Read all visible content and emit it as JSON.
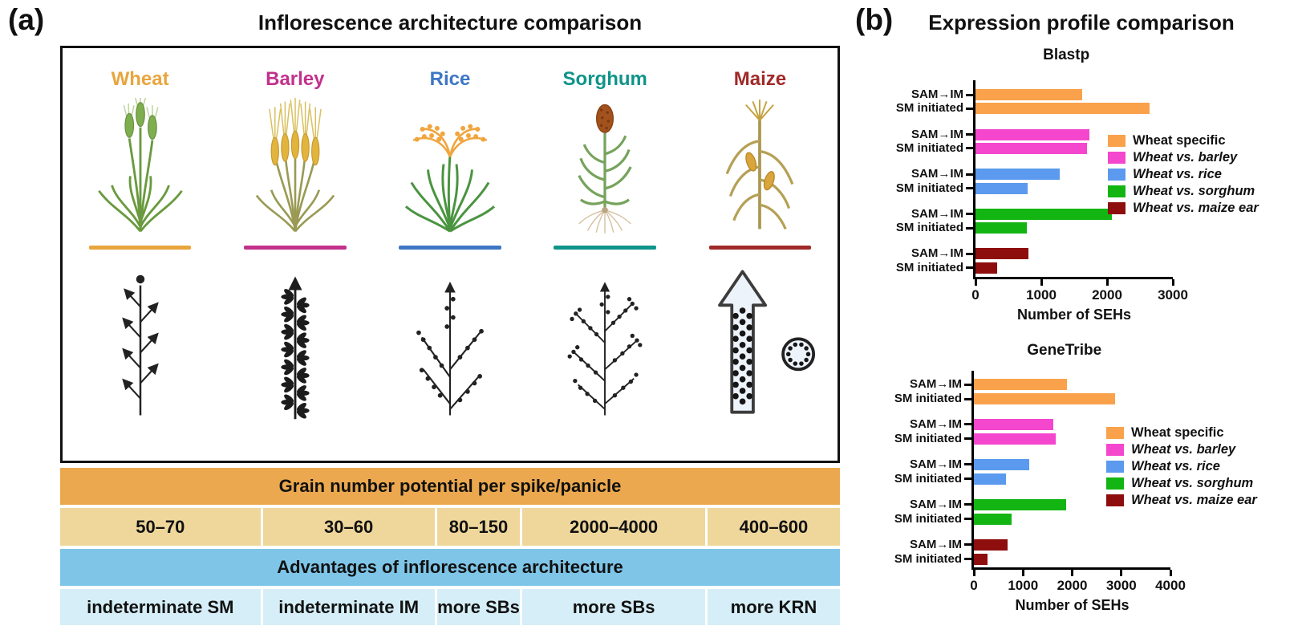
{
  "panel_a": {
    "label": "(a)",
    "title": "Inflorescence architecture comparison",
    "crops": [
      {
        "name": "Wheat",
        "color": "#E8A53C"
      },
      {
        "name": "Barley",
        "color": "#C2318C"
      },
      {
        "name": "Rice",
        "color": "#3D76C4"
      },
      {
        "name": "Sorghum",
        "color": "#0F948A"
      },
      {
        "name": "Maize",
        "color": "#A02A28"
      }
    ],
    "table": {
      "grain_header": "Grain number potential per spike/panicle",
      "grain_values": [
        "50–70",
        "30–60",
        "80–150",
        "2000–4000",
        "400–600"
      ],
      "advantages_header": "Advantages of inflorescence architecture",
      "advantages_values": [
        "indeterminate SM",
        "indeterminate IM",
        "more SBs",
        "more SBs",
        "more KRN"
      ],
      "colors": {
        "grain_header_bg": "#EBA84E",
        "grain_values_bg": "#EFD79B",
        "advantages_header_bg": "#7EC5E8",
        "advantages_values_bg": "#D5EEF7"
      }
    }
  },
  "panel_b": {
    "label": "(b)",
    "title": "Expression profile comparison"
  },
  "chart_data": [
    {
      "type": "bar",
      "orientation": "horizontal",
      "title": "Blastp",
      "xlabel": "Number of SEHs",
      "xlim": [
        0,
        3000
      ],
      "xticks": [
        0,
        1000,
        2000,
        3000
      ],
      "row_labels": [
        "SAM→IM",
        "SM initiated"
      ],
      "legend_position": "right",
      "grid": false,
      "groups": [
        {
          "name": "Wheat specific",
          "color": "#F9A24B",
          "italic": false,
          "values": [
            1620,
            2650
          ]
        },
        {
          "name": "Wheat vs. barley",
          "color": "#F447CD",
          "italic": true,
          "values": [
            1730,
            1690
          ]
        },
        {
          "name": "Wheat vs. rice",
          "color": "#5B9AEE",
          "italic": true,
          "values": [
            1280,
            790
          ]
        },
        {
          "name": "Wheat vs. sorghum",
          "color": "#13B513",
          "italic": true,
          "values": [
            2070,
            780
          ]
        },
        {
          "name": "Wheat vs. maize ear",
          "color": "#8E0E0E",
          "italic": true,
          "values": [
            800,
            330
          ]
        }
      ]
    },
    {
      "type": "bar",
      "orientation": "horizontal",
      "title": "GeneTribe",
      "xlabel": "Number of SEHs",
      "xlim": [
        0,
        4000
      ],
      "xticks": [
        0,
        1000,
        2000,
        3000,
        4000
      ],
      "row_labels": [
        "SAM→IM",
        "SM initiated"
      ],
      "legend_position": "right",
      "grid": false,
      "groups": [
        {
          "name": "Wheat specific",
          "color": "#F9A24B",
          "italic": false,
          "values": [
            1900,
            2870
          ]
        },
        {
          "name": "Wheat vs. barley",
          "color": "#F447CD",
          "italic": true,
          "values": [
            1610,
            1660
          ]
        },
        {
          "name": "Wheat vs. rice",
          "color": "#5B9AEE",
          "italic": true,
          "values": [
            1130,
            650
          ]
        },
        {
          "name": "Wheat vs. sorghum",
          "color": "#13B513",
          "italic": true,
          "values": [
            1880,
            760
          ]
        },
        {
          "name": "Wheat vs. maize ear",
          "color": "#8E0E0E",
          "italic": true,
          "values": [
            690,
            280
          ]
        }
      ]
    }
  ]
}
